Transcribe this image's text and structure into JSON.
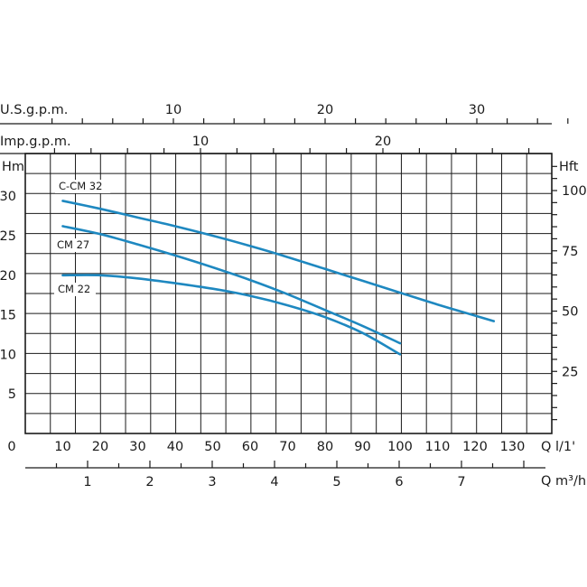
{
  "chart_data": {
    "type": "line",
    "grid": true,
    "x_axis_main": {
      "label": "Q l/1'",
      "lim": [
        0,
        135
      ],
      "ticks": [
        0,
        10,
        20,
        30,
        40,
        50,
        60,
        70,
        80,
        90,
        100,
        110,
        120,
        130
      ]
    },
    "x_axis_m3h": {
      "label": "Q m³/h",
      "ticks": [
        1,
        2,
        3,
        4,
        5,
        6,
        7
      ]
    },
    "x_axis_usgpm": {
      "label": "U.S.g.p.m.",
      "ticks": [
        10,
        20,
        30
      ]
    },
    "x_axis_impgpm": {
      "label": "Imp.g.p.m.",
      "ticks": [
        10,
        20
      ]
    },
    "y_axis_left": {
      "label": "Hm",
      "lim": [
        0,
        35
      ],
      "ticks": [
        5,
        10,
        15,
        20,
        25,
        30
      ]
    },
    "y_axis_right": {
      "label": "Hft",
      "ticks": [
        25,
        50,
        75,
        100
      ]
    },
    "series": [
      {
        "name": "C-CM 32",
        "color": "#1e88c0",
        "x": [
          10,
          20,
          30,
          40,
          50,
          60,
          70,
          80,
          90,
          100,
          110,
          120,
          125
        ],
        "y": [
          29.4,
          28.4,
          27.3,
          26.2,
          25.0,
          23.7,
          22.3,
          20.8,
          19.3,
          17.8,
          16.3,
          14.9,
          14.2
        ]
      },
      {
        "name": "CM 27",
        "color": "#1e88c0",
        "x": [
          10,
          20,
          30,
          40,
          50,
          60,
          70,
          80,
          90,
          100
        ],
        "y": [
          26.2,
          25.2,
          23.9,
          22.5,
          21.0,
          19.4,
          17.6,
          15.6,
          13.6,
          11.4
        ]
      },
      {
        "name": "CM 22",
        "color": "#1e88c0",
        "x": [
          10,
          20,
          30,
          40,
          50,
          60,
          70,
          80,
          90,
          100
        ],
        "y": [
          20.0,
          20.0,
          19.6,
          19.0,
          18.3,
          17.4,
          16.2,
          14.7,
          12.7,
          10.0
        ]
      }
    ]
  }
}
